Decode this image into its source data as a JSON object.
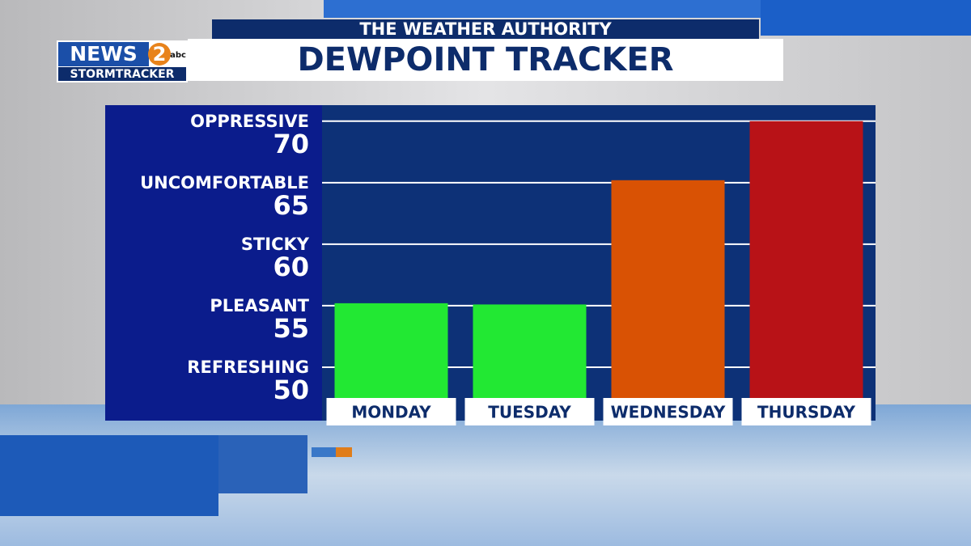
{
  "branding": {
    "news": "NEWS",
    "number": "2",
    "network": "abc",
    "station": "STORMTRACKER"
  },
  "chart_data": {
    "type": "bar",
    "subtitle": "THE WEATHER AUTHORITY",
    "title": "DEWPOINT TRACKER",
    "categories": [
      "MONDAY",
      "TUESDAY",
      "WEDNESDAY",
      "THURSDAY"
    ],
    "values": [
      55.2,
      55.1,
      65.2,
      70
    ],
    "colors": [
      "#22e833",
      "#22e833",
      "#d95204",
      "#b81217"
    ],
    "ylim": [
      47.5,
      71.3
    ],
    "yticks": [
      50,
      55,
      60,
      65,
      70
    ],
    "ytick_descriptions": [
      "REFRESHING",
      "PLEASANT",
      "STICKY",
      "UNCOMFORTABLE",
      "OPPRESSIVE"
    ],
    "grid": true
  }
}
